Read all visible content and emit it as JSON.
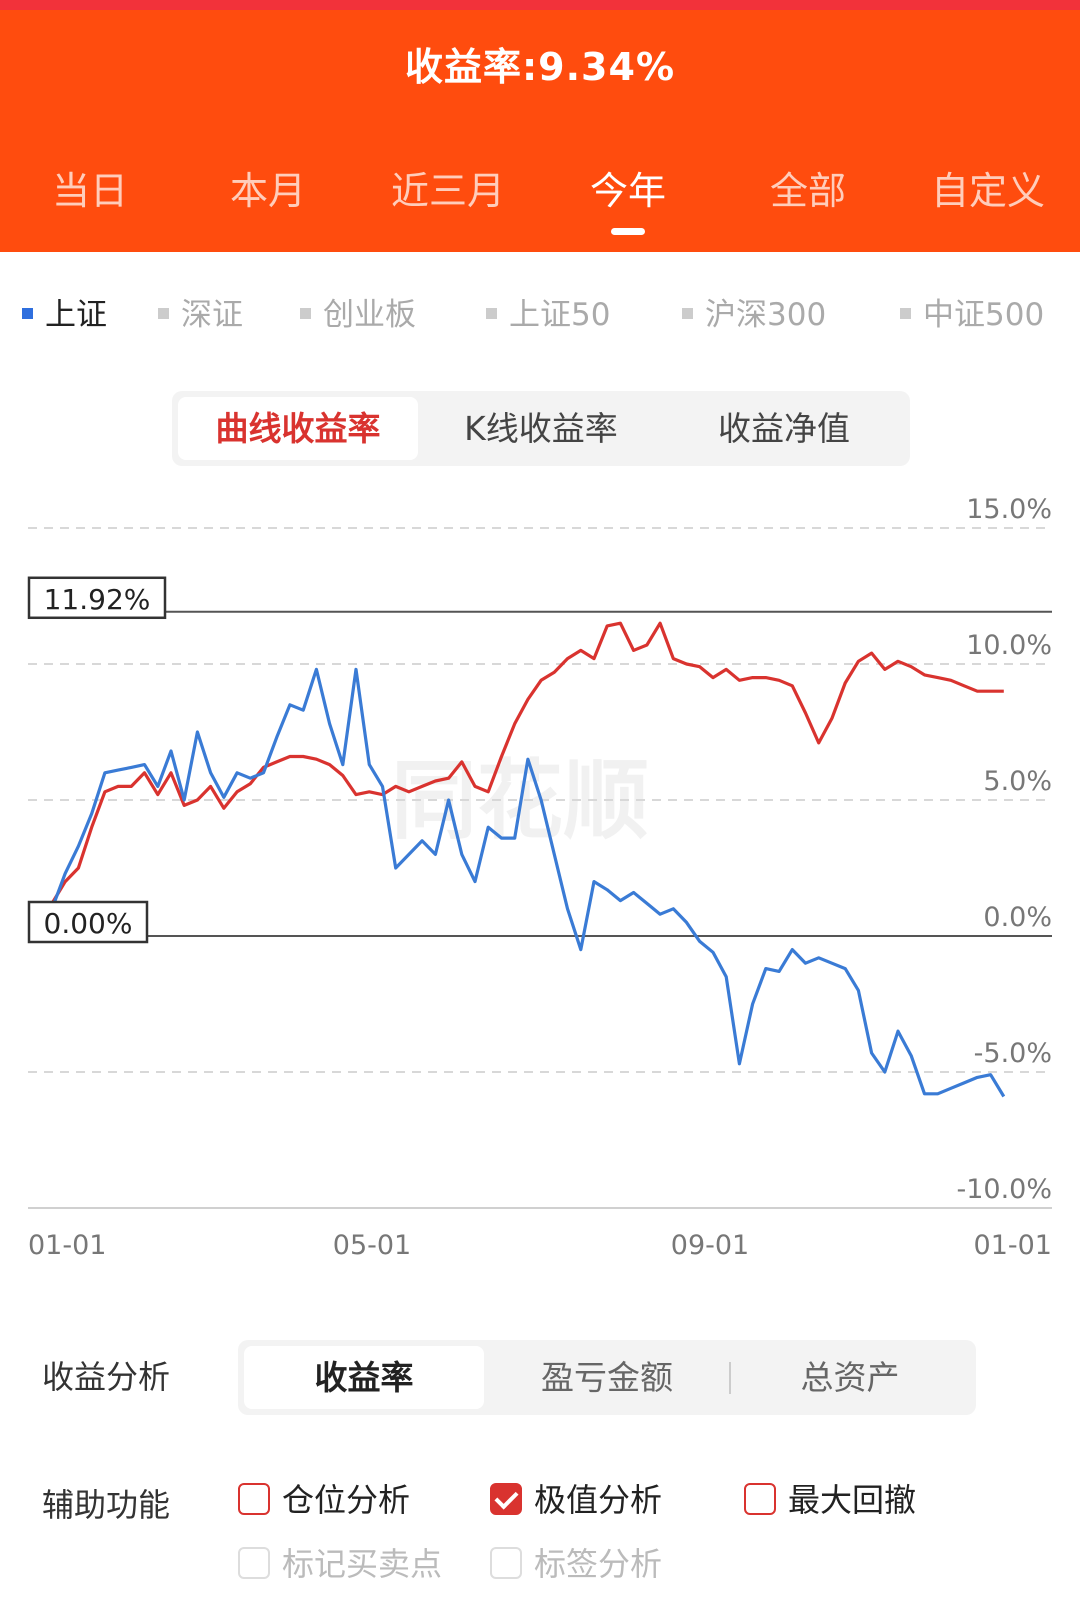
{
  "header": {
    "title": "收益率:9.34%"
  },
  "periods": [
    "当日",
    "本月",
    "近三月",
    "今年",
    "全部",
    "自定义"
  ],
  "period_active": 3,
  "indices": [
    "上证",
    "深证",
    "创业板",
    "上证50",
    "沪深300",
    "中证500"
  ],
  "index_active": 0,
  "chart_tabs": [
    "曲线收益率",
    "K线收益率",
    "收益净值"
  ],
  "chart_tab_active": 0,
  "watermark": "同花顺",
  "analysis": {
    "label": "收益分析",
    "tabs": [
      "收益率",
      "盈亏金额",
      "总资产"
    ]
  },
  "aux": {
    "label": "辅助功能",
    "options": [
      {
        "label": "仓位分析",
        "checked": false,
        "enabled": true
      },
      {
        "label": "极值分析",
        "checked": true,
        "enabled": true
      },
      {
        "label": "最大回撤",
        "checked": false,
        "enabled": true
      },
      {
        "label": "标记买卖点",
        "checked": false,
        "enabled": false
      },
      {
        "label": "标签分析",
        "checked": false,
        "enabled": false
      }
    ]
  },
  "colors": {
    "header": "#ff4c0e",
    "portfolio": "#d9332f",
    "index": "#3a7bd5",
    "accent_blue": "#2f6fde"
  },
  "chart_data": {
    "type": "line",
    "ylim": [
      -10,
      15
    ],
    "y_ticks": [
      "15.0%",
      "10.0%",
      "5.0%",
      "0.0%",
      "-5.0%",
      "-10.0%"
    ],
    "y_tick_values": [
      15,
      10,
      5,
      0,
      -5,
      -10
    ],
    "x_tick_labels": [
      "01-01",
      "05-01",
      "09-01",
      "01-01"
    ],
    "x_tick_values": [
      0,
      120,
      243,
      365
    ],
    "annotations": [
      {
        "label": "11.92%",
        "value": 11.92
      },
      {
        "label": "0.00%",
        "value": 0.0
      }
    ],
    "grid": "dashed horizontal",
    "series": [
      {
        "color": "#d9332f",
        "x": [
          0,
          5,
          10,
          15,
          20,
          25,
          30,
          35,
          40,
          45,
          50,
          55,
          60,
          65,
          70,
          75,
          80,
          85,
          90,
          95,
          100,
          105,
          110,
          115,
          120,
          125,
          130,
          135,
          140,
          145,
          150,
          155,
          160,
          165,
          170,
          175,
          180,
          185,
          190,
          195,
          200,
          205,
          210,
          215,
          220,
          225,
          230,
          235,
          240,
          245,
          250,
          255,
          260,
          265,
          270,
          275,
          280,
          285,
          290,
          295,
          300,
          305,
          310,
          315,
          320,
          325,
          330,
          335,
          340,
          345,
          350,
          355,
          360
        ],
        "values": [
          1.2,
          2.0,
          2.5,
          4.0,
          5.3,
          5.5,
          5.5,
          6.0,
          5.2,
          6.0,
          4.8,
          5.0,
          5.5,
          4.7,
          5.3,
          5.6,
          6.2,
          6.4,
          6.6,
          6.6,
          6.5,
          6.3,
          5.9,
          5.2,
          5.3,
          5.2,
          5.5,
          5.3,
          5.5,
          5.7,
          5.8,
          6.4,
          5.5,
          5.3,
          6.6,
          7.8,
          8.7,
          9.4,
          9.7,
          10.2,
          10.5,
          10.2,
          11.4,
          11.5,
          10.5,
          10.7,
          11.5,
          10.2,
          10.0,
          9.9,
          9.5,
          9.8,
          9.4,
          9.5,
          9.5,
          9.4,
          9.2,
          8.2,
          7.1,
          8.0,
          9.3,
          10.1,
          10.4,
          9.8,
          10.1,
          9.9,
          9.6,
          9.5,
          9.4,
          9.2,
          9.0,
          9.0,
          9.0
        ]
      },
      {
        "color": "#3a7bd5",
        "x": [
          0,
          5,
          10,
          15,
          20,
          25,
          30,
          35,
          40,
          45,
          50,
          55,
          60,
          65,
          70,
          75,
          80,
          85,
          90,
          95,
          100,
          105,
          110,
          115,
          120,
          125,
          130,
          135,
          140,
          145,
          150,
          155,
          160,
          165,
          170,
          175,
          180,
          185,
          190,
          195,
          200,
          205,
          210,
          215,
          220,
          225,
          230,
          235,
          240,
          245,
          250,
          255,
          260,
          265,
          270,
          275,
          280,
          285,
          290,
          295,
          300,
          305,
          310,
          315,
          320,
          325,
          330,
          335,
          340,
          345,
          350,
          355,
          360
        ],
        "values": [
          1.0,
          2.3,
          3.3,
          4.5,
          6.0,
          6.1,
          6.2,
          6.3,
          5.5,
          6.8,
          5.0,
          7.5,
          6.0,
          5.1,
          6.0,
          5.8,
          6.0,
          7.3,
          8.5,
          8.3,
          9.8,
          7.8,
          6.3,
          9.8,
          6.3,
          5.5,
          2.5,
          3.0,
          3.5,
          3.0,
          5.0,
          3.0,
          2.0,
          4.0,
          3.6,
          3.6,
          6.5,
          5.0,
          3.0,
          1.0,
          -0.5,
          2.0,
          1.7,
          1.3,
          1.6,
          1.2,
          0.8,
          1.0,
          0.5,
          -0.2,
          -0.6,
          -1.5,
          -4.7,
          -2.5,
          -1.2,
          -1.3,
          -0.5,
          -1.0,
          -0.8,
          -1.0,
          -1.2,
          -2.0,
          -4.3,
          -5.0,
          -3.5,
          -4.4,
          -5.8,
          -5.8,
          -5.6,
          -5.4,
          -5.2,
          -5.1,
          -5.9
        ]
      }
    ]
  }
}
